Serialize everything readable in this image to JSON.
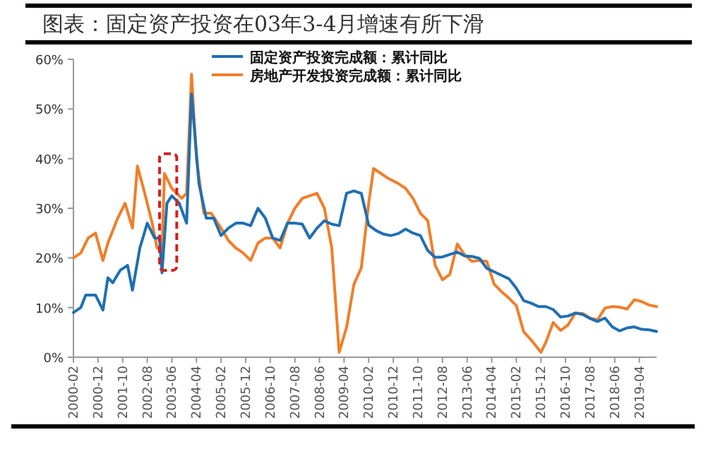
{
  "chart_data": {
    "type": "line",
    "title": "图表：固定资产投资在03年3-4月增速有所下滑",
    "xlim": [
      "2000-02",
      "2019-11"
    ],
    "xticks": [
      "2000-02",
      "2000-12",
      "2001-10",
      "2002-08",
      "2003-06",
      "2004-04",
      "2005-02",
      "2005-12",
      "2006-10",
      "2007-08",
      "2008-06",
      "2009-04",
      "2010-02",
      "2010-12",
      "2011-10",
      "2012-08",
      "2013-06",
      "2014-04",
      "2015-02",
      "2015-12",
      "2016-10",
      "2017-08",
      "2018-06",
      "2019-04"
    ],
    "ylim": [
      0,
      60
    ],
    "yticks": [
      {
        "value": 0,
        "label": "0%"
      },
      {
        "value": 10,
        "label": "10%"
      },
      {
        "value": 20,
        "label": "20%"
      },
      {
        "value": 30,
        "label": "30%"
      },
      {
        "value": 40,
        "label": "40%"
      },
      {
        "value": 50,
        "label": "50%"
      },
      {
        "value": 60,
        "label": "60%"
      }
    ],
    "grid": false,
    "legend": "top",
    "marker": "none",
    "line_style": "solid",
    "series": [
      {
        "name": "固定资产投资完成额：累计同比",
        "color": "#1f6fb4",
        "x": [
          "2000-02",
          "2000-05",
          "2000-07",
          "2000-11",
          "2001-02",
          "2001-04",
          "2001-06",
          "2001-09",
          "2001-12",
          "2002-02",
          "2002-05",
          "2002-08",
          "2002-11",
          "2003-01",
          "2003-02",
          "2003-04",
          "2003-06",
          "2003-09",
          "2003-12",
          "2004-02",
          "2004-05",
          "2004-08",
          "2004-11",
          "2005-02",
          "2005-05",
          "2005-08",
          "2005-11",
          "2006-02",
          "2006-05",
          "2006-08",
          "2006-11",
          "2007-02",
          "2007-05",
          "2007-08",
          "2007-11",
          "2008-02",
          "2008-05",
          "2008-08",
          "2008-11",
          "2009-02",
          "2009-05",
          "2009-08",
          "2009-11",
          "2010-02",
          "2010-05",
          "2010-08",
          "2010-11",
          "2011-02",
          "2011-05",
          "2011-08",
          "2011-11",
          "2012-02",
          "2012-05",
          "2012-08",
          "2012-11",
          "2013-02",
          "2013-05",
          "2013-08",
          "2013-11",
          "2014-02",
          "2014-05",
          "2014-08",
          "2014-11",
          "2015-02",
          "2015-05",
          "2015-08",
          "2015-11",
          "2016-02",
          "2016-05",
          "2016-08",
          "2016-11",
          "2017-02",
          "2017-05",
          "2017-08",
          "2017-11",
          "2018-02",
          "2018-05",
          "2018-08",
          "2018-11",
          "2019-02",
          "2019-05",
          "2019-08",
          "2019-11"
        ],
        "values": [
          9,
          10,
          12.5,
          12.5,
          9.5,
          16,
          15,
          17.5,
          18.5,
          13.5,
          22,
          27,
          24,
          24,
          17,
          31,
          32.5,
          31,
          27,
          53,
          35,
          28,
          28,
          24.5,
          26,
          27,
          27,
          26.5,
          30,
          28,
          24,
          23.5,
          27,
          27,
          26.8,
          24,
          26,
          27.5,
          26.8,
          26.5,
          33,
          33.5,
          33,
          26.6,
          25.5,
          24.8,
          24.5,
          24.9,
          25.8,
          25,
          24.5,
          21.5,
          20.1,
          20.2,
          20.7,
          21.2,
          20.4,
          20.3,
          19.9,
          17.9,
          17.2,
          16.5,
          15.8,
          13.9,
          11.4,
          10.9,
          10.2,
          10.2,
          9.6,
          8.1,
          8.3,
          8.9,
          8.6,
          7.8,
          7.2,
          7.9,
          6.1,
          5.3,
          5.9,
          6.1,
          5.6,
          5.5,
          5.2
        ]
      },
      {
        "name": "房地产开发投资完成额：累计同比",
        "color": "#f07f2a",
        "x": [
          "2000-02",
          "2000-05",
          "2000-08",
          "2000-11",
          "2001-02",
          "2001-04",
          "2001-08",
          "2001-11",
          "2002-02",
          "2002-04",
          "2002-07",
          "2002-10",
          "2002-12",
          "2003-02",
          "2003-03",
          "2003-06",
          "2003-10",
          "2003-12",
          "2004-02",
          "2004-04",
          "2004-07",
          "2004-10",
          "2005-02",
          "2005-05",
          "2005-08",
          "2005-11",
          "2006-02",
          "2006-05",
          "2006-08",
          "2006-11",
          "2007-02",
          "2007-05",
          "2007-08",
          "2007-11",
          "2008-02",
          "2008-05",
          "2008-08",
          "2008-11",
          "2009-02",
          "2009-05",
          "2009-08",
          "2009-11",
          "2010-02",
          "2010-04",
          "2010-07",
          "2010-10",
          "2011-02",
          "2011-05",
          "2011-08",
          "2011-11",
          "2012-02",
          "2012-05",
          "2012-08",
          "2012-11",
          "2013-02",
          "2013-05",
          "2013-08",
          "2013-11",
          "2014-02",
          "2014-05",
          "2014-08",
          "2014-11",
          "2015-02",
          "2015-05",
          "2015-08",
          "2015-12",
          "2016-02",
          "2016-05",
          "2016-08",
          "2016-11",
          "2017-02",
          "2017-05",
          "2017-08",
          "2017-11",
          "2018-02",
          "2018-05",
          "2018-08",
          "2018-11",
          "2019-02",
          "2019-05",
          "2019-08",
          "2019-11"
        ],
        "values": [
          20,
          21,
          24,
          25,
          19.5,
          23,
          28,
          31,
          26,
          38.5,
          33,
          27,
          22,
          21.5,
          37,
          34,
          32,
          33,
          57,
          40,
          29,
          29,
          26,
          23.5,
          22,
          21,
          19.5,
          23,
          24,
          24,
          22,
          27,
          30,
          32,
          32.5,
          33,
          30,
          22,
          1,
          6,
          14.7,
          18,
          31,
          38,
          37,
          36,
          35,
          34,
          32,
          29,
          27.5,
          18.5,
          15.6,
          16.7,
          22.8,
          20.6,
          19.3,
          19.5,
          19.3,
          14.7,
          13.2,
          11.9,
          10.4,
          5.1,
          3.5,
          1,
          3,
          7,
          5.4,
          6.5,
          8.9,
          8.8,
          7.9,
          7.5,
          9.9,
          10.2,
          10.1,
          9.7,
          11.6,
          11.2,
          10.5,
          10.2
        ]
      }
    ]
  }
}
